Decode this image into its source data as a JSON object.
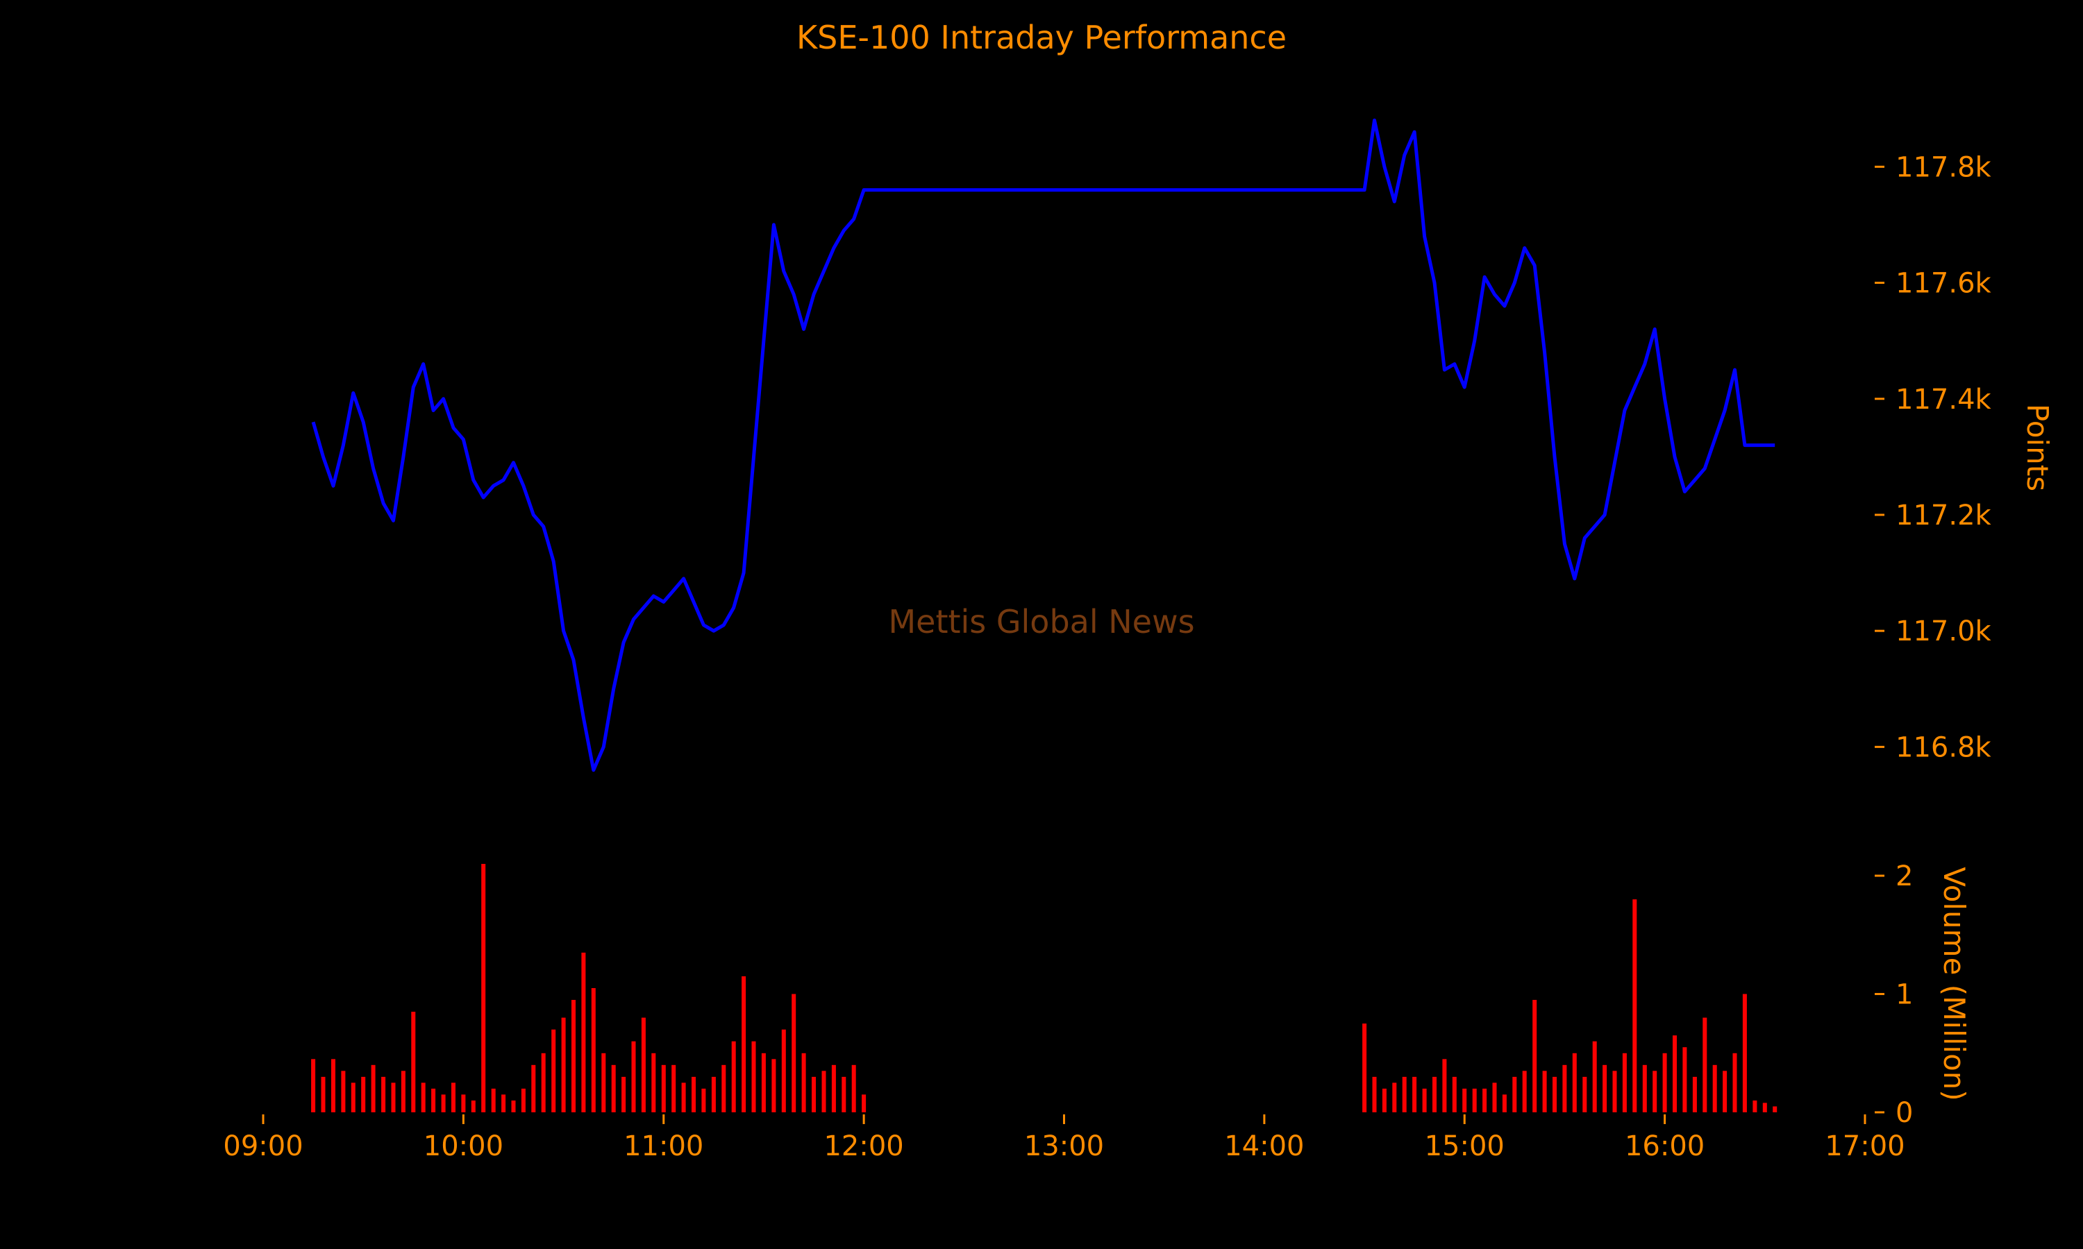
{
  "chart_data": {
    "type": "line",
    "title": "KSE-100 Intraday Performance",
    "watermark": "Mettis Global News",
    "colors": {
      "text": "#ff8c00",
      "background": "#000000",
      "price_line": "#0000ff",
      "volume_bars": "#ff0000",
      "watermark": "#8b4513"
    },
    "x_axis": {
      "ticks": [
        "09:00",
        "10:00",
        "11:00",
        "12:00",
        "13:00",
        "14:00",
        "15:00",
        "16:00",
        "17:00"
      ],
      "range": [
        "08:55",
        "17:05"
      ]
    },
    "price_axis": {
      "label": "Points",
      "ticks": [
        "116.8k",
        "117.0k",
        "117.2k",
        "117.4k",
        "117.6k",
        "117.8k"
      ],
      "range": [
        116700,
        117920
      ]
    },
    "volume_axis": {
      "label": "Volume (Million)",
      "ticks": [
        "0",
        "1",
        "2"
      ],
      "range": [
        0,
        2.1
      ]
    },
    "series": [
      {
        "kind": "price",
        "points": [
          [
            "09:15",
            117360
          ],
          [
            "09:18",
            117300
          ],
          [
            "09:21",
            117250
          ],
          [
            "09:24",
            117320
          ],
          [
            "09:27",
            117410
          ],
          [
            "09:30",
            117360
          ],
          [
            "09:33",
            117280
          ],
          [
            "09:36",
            117220
          ],
          [
            "09:39",
            117190
          ],
          [
            "09:42",
            117300
          ],
          [
            "09:45",
            117420
          ],
          [
            "09:48",
            117460
          ],
          [
            "09:51",
            117380
          ],
          [
            "09:54",
            117400
          ],
          [
            "09:57",
            117350
          ],
          [
            "10:00",
            117330
          ],
          [
            "10:03",
            117260
          ],
          [
            "10:06",
            117230
          ],
          [
            "10:09",
            117250
          ],
          [
            "10:12",
            117260
          ],
          [
            "10:15",
            117290
          ],
          [
            "10:18",
            117250
          ],
          [
            "10:21",
            117200
          ],
          [
            "10:24",
            117180
          ],
          [
            "10:27",
            117120
          ],
          [
            "10:30",
            117000
          ],
          [
            "10:33",
            116950
          ],
          [
            "10:36",
            116850
          ],
          [
            "10:39",
            116760
          ],
          [
            "10:42",
            116800
          ],
          [
            "10:45",
            116900
          ],
          [
            "10:48",
            116980
          ],
          [
            "10:51",
            117020
          ],
          [
            "10:54",
            117040
          ],
          [
            "10:57",
            117060
          ],
          [
            "11:00",
            117050
          ],
          [
            "11:03",
            117070
          ],
          [
            "11:06",
            117090
          ],
          [
            "11:09",
            117050
          ],
          [
            "11:12",
            117010
          ],
          [
            "11:15",
            117000
          ],
          [
            "11:18",
            117010
          ],
          [
            "11:21",
            117040
          ],
          [
            "11:24",
            117100
          ],
          [
            "11:27",
            117300
          ],
          [
            "11:30",
            117500
          ],
          [
            "11:33",
            117700
          ],
          [
            "11:36",
            117620
          ],
          [
            "11:39",
            117580
          ],
          [
            "11:42",
            117520
          ],
          [
            "11:45",
            117580
          ],
          [
            "11:48",
            117620
          ],
          [
            "11:51",
            117660
          ],
          [
            "11:54",
            117690
          ],
          [
            "11:57",
            117710
          ],
          [
            "12:00",
            117760
          ],
          [
            "14:30",
            117760
          ],
          [
            "14:33",
            117880
          ],
          [
            "14:36",
            117800
          ],
          [
            "14:39",
            117740
          ],
          [
            "14:42",
            117820
          ],
          [
            "14:45",
            117860
          ],
          [
            "14:48",
            117680
          ],
          [
            "14:51",
            117600
          ],
          [
            "14:54",
            117450
          ],
          [
            "14:57",
            117460
          ],
          [
            "15:00",
            117420
          ],
          [
            "15:03",
            117500
          ],
          [
            "15:06",
            117610
          ],
          [
            "15:09",
            117580
          ],
          [
            "15:12",
            117560
          ],
          [
            "15:15",
            117600
          ],
          [
            "15:18",
            117660
          ],
          [
            "15:21",
            117630
          ],
          [
            "15:24",
            117480
          ],
          [
            "15:27",
            117300
          ],
          [
            "15:30",
            117150
          ],
          [
            "15:33",
            117090
          ],
          [
            "15:36",
            117160
          ],
          [
            "15:39",
            117180
          ],
          [
            "15:42",
            117200
          ],
          [
            "15:45",
            117290
          ],
          [
            "15:48",
            117380
          ],
          [
            "15:51",
            117420
          ],
          [
            "15:54",
            117460
          ],
          [
            "15:57",
            117520
          ],
          [
            "16:00",
            117400
          ],
          [
            "16:03",
            117300
          ],
          [
            "16:06",
            117240
          ],
          [
            "16:09",
            117260
          ],
          [
            "16:12",
            117280
          ],
          [
            "16:15",
            117330
          ],
          [
            "16:18",
            117380
          ],
          [
            "16:21",
            117450
          ],
          [
            "16:24",
            117320
          ],
          [
            "16:33",
            117320
          ]
        ]
      },
      {
        "kind": "volume",
        "points": [
          [
            "09:15",
            0.45
          ],
          [
            "09:18",
            0.3
          ],
          [
            "09:21",
            0.45
          ],
          [
            "09:24",
            0.35
          ],
          [
            "09:27",
            0.25
          ],
          [
            "09:30",
            0.3
          ],
          [
            "09:33",
            0.4
          ],
          [
            "09:36",
            0.3
          ],
          [
            "09:39",
            0.25
          ],
          [
            "09:42",
            0.35
          ],
          [
            "09:45",
            0.85
          ],
          [
            "09:48",
            0.25
          ],
          [
            "09:51",
            0.2
          ],
          [
            "09:54",
            0.15
          ],
          [
            "09:57",
            0.25
          ],
          [
            "10:00",
            0.15
          ],
          [
            "10:03",
            0.1
          ],
          [
            "10:06",
            2.1
          ],
          [
            "10:09",
            0.2
          ],
          [
            "10:12",
            0.15
          ],
          [
            "10:15",
            0.1
          ],
          [
            "10:18",
            0.2
          ],
          [
            "10:21",
            0.4
          ],
          [
            "10:24",
            0.5
          ],
          [
            "10:27",
            0.7
          ],
          [
            "10:30",
            0.8
          ],
          [
            "10:33",
            0.95
          ],
          [
            "10:36",
            1.35
          ],
          [
            "10:39",
            1.05
          ],
          [
            "10:42",
            0.5
          ],
          [
            "10:45",
            0.4
          ],
          [
            "10:48",
            0.3
          ],
          [
            "10:51",
            0.6
          ],
          [
            "10:54",
            0.8
          ],
          [
            "10:57",
            0.5
          ],
          [
            "11:00",
            0.4
          ],
          [
            "11:03",
            0.4
          ],
          [
            "11:06",
            0.25
          ],
          [
            "11:09",
            0.3
          ],
          [
            "11:12",
            0.2
          ],
          [
            "11:15",
            0.3
          ],
          [
            "11:18",
            0.4
          ],
          [
            "11:21",
            0.6
          ],
          [
            "11:24",
            1.15
          ],
          [
            "11:27",
            0.6
          ],
          [
            "11:30",
            0.5
          ],
          [
            "11:33",
            0.45
          ],
          [
            "11:36",
            0.7
          ],
          [
            "11:39",
            1.0
          ],
          [
            "11:42",
            0.5
          ],
          [
            "11:45",
            0.3
          ],
          [
            "11:48",
            0.35
          ],
          [
            "11:51",
            0.4
          ],
          [
            "11:54",
            0.3
          ],
          [
            "11:57",
            0.4
          ],
          [
            "12:00",
            0.15
          ],
          [
            "14:30",
            0.75
          ],
          [
            "14:33",
            0.3
          ],
          [
            "14:36",
            0.2
          ],
          [
            "14:39",
            0.25
          ],
          [
            "14:42",
            0.3
          ],
          [
            "14:45",
            0.3
          ],
          [
            "14:48",
            0.2
          ],
          [
            "14:51",
            0.3
          ],
          [
            "14:54",
            0.45
          ],
          [
            "14:57",
            0.3
          ],
          [
            "15:00",
            0.2
          ],
          [
            "15:03",
            0.2
          ],
          [
            "15:06",
            0.2
          ],
          [
            "15:09",
            0.25
          ],
          [
            "15:12",
            0.15
          ],
          [
            "15:15",
            0.3
          ],
          [
            "15:18",
            0.35
          ],
          [
            "15:21",
            0.95
          ],
          [
            "15:24",
            0.35
          ],
          [
            "15:27",
            0.3
          ],
          [
            "15:30",
            0.4
          ],
          [
            "15:33",
            0.5
          ],
          [
            "15:36",
            0.3
          ],
          [
            "15:39",
            0.6
          ],
          [
            "15:42",
            0.4
          ],
          [
            "15:45",
            0.35
          ],
          [
            "15:48",
            0.5
          ],
          [
            "15:51",
            1.8
          ],
          [
            "15:54",
            0.4
          ],
          [
            "15:57",
            0.35
          ],
          [
            "16:00",
            0.5
          ],
          [
            "16:03",
            0.65
          ],
          [
            "16:06",
            0.55
          ],
          [
            "16:09",
            0.3
          ],
          [
            "16:12",
            0.8
          ],
          [
            "16:15",
            0.4
          ],
          [
            "16:18",
            0.35
          ],
          [
            "16:21",
            0.5
          ],
          [
            "16:24",
            1.0
          ],
          [
            "16:27",
            0.1
          ],
          [
            "16:30",
            0.08
          ],
          [
            "16:33",
            0.05
          ]
        ]
      }
    ]
  }
}
